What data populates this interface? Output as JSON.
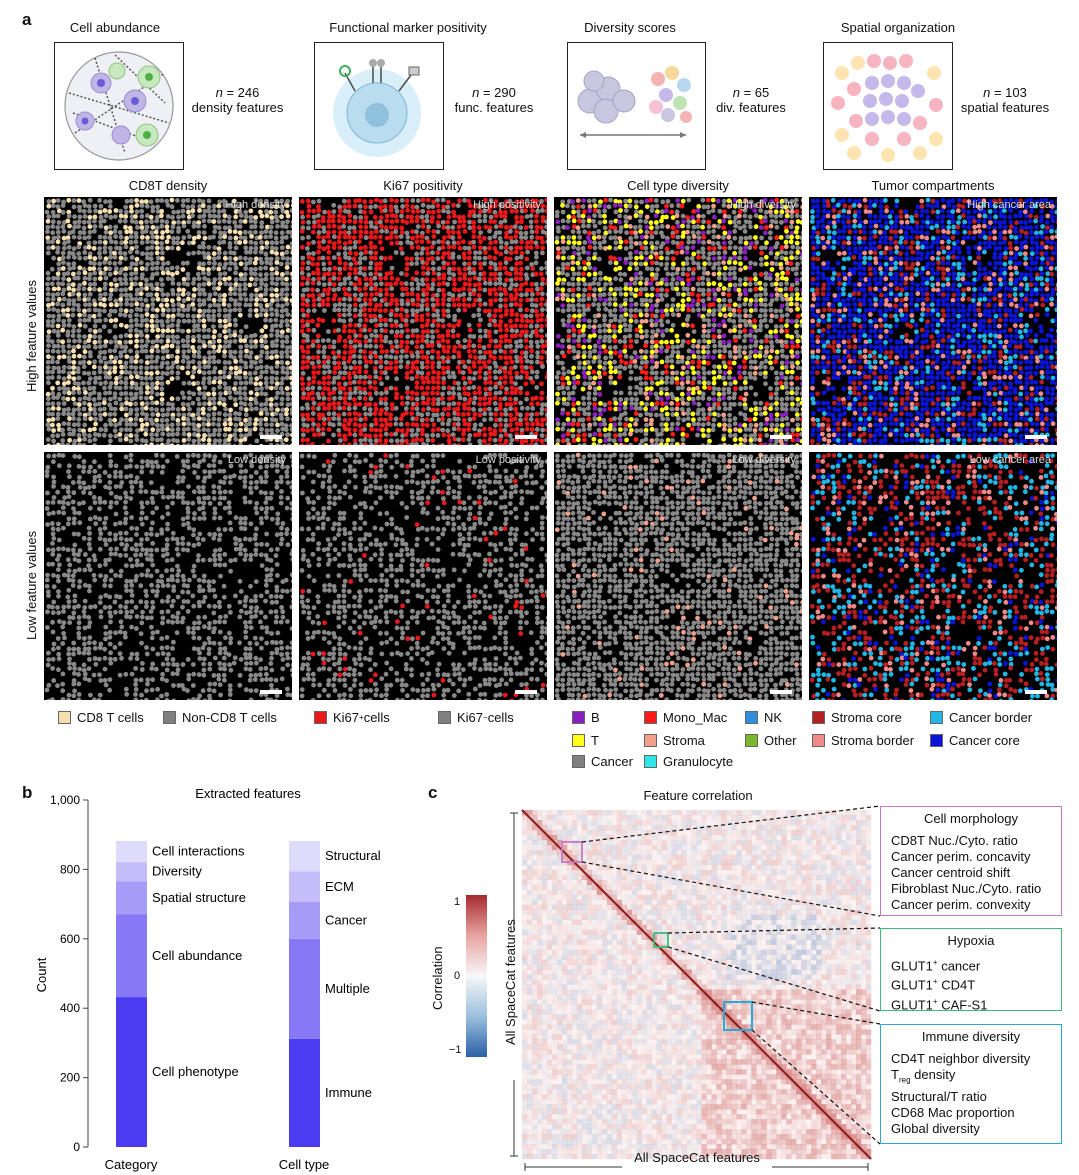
{
  "panel_a": {
    "label": "a",
    "schematics": [
      {
        "title": "Cell abundance",
        "n_prefix": "n",
        "n_value": " = 246",
        "desc": "density features"
      },
      {
        "title": "Functional marker positivity",
        "n_prefix": "n",
        "n_value": " = 290",
        "desc": "func. features"
      },
      {
        "title": "Diversity scores",
        "n_prefix": "n",
        "n_value": " = 65",
        "desc": "div. features"
      },
      {
        "title": "Spatial organization",
        "n_prefix": "n",
        "n_value": " = 103",
        "desc": "spatial features"
      }
    ],
    "column_titles": [
      "CD8T density",
      "Ki67 positivity",
      "Cell type diversity",
      "Tumor compartments"
    ],
    "row_labels": [
      "High feature values",
      "Low feature values"
    ],
    "high_tags": [
      "High density",
      "High positivity",
      "High diversity",
      "High cancer area"
    ],
    "low_tags": [
      "Low density",
      "Low positivity",
      "Low diversity",
      "Low cancer area"
    ],
    "legend": {
      "cd8": [
        {
          "label": "CD8 T cells",
          "color": "#f5dfb0"
        },
        {
          "label": "Non-CD8 T cells",
          "color": "#808080"
        }
      ],
      "ki67": [
        {
          "pre": "Ki67",
          "sup": "+",
          "post": " cells",
          "color": "#e8181b"
        },
        {
          "pre": "Ki67",
          "sup": "−",
          "post": " cells",
          "color": "#808080"
        }
      ],
      "celltype": [
        {
          "label": "B",
          "color": "#8a1fbf"
        },
        {
          "label": "Mono_Mac",
          "color": "#ff1a1a"
        },
        {
          "label": "NK",
          "color": "#2f8fde"
        },
        {
          "label": "T",
          "color": "#ffff1a"
        },
        {
          "label": "Stroma",
          "color": "#f0a08a"
        },
        {
          "label": "Other",
          "color": "#7ab82e"
        },
        {
          "label": "Cancer",
          "color": "#808080"
        },
        {
          "label": "Granulocyte",
          "color": "#2ee6e6"
        }
      ],
      "compartment": [
        {
          "label": "Stroma core",
          "color": "#b51e22"
        },
        {
          "label": "Cancer border",
          "color": "#20b7e6"
        },
        {
          "label": "Stroma border",
          "color": "#f08a8a"
        },
        {
          "label": "Cancer core",
          "color": "#0a14d6"
        }
      ]
    }
  },
  "panel_b": {
    "label": "b",
    "title": "Extracted features",
    "ylabel": "Count",
    "yticks": [
      "0",
      "200",
      "400",
      "600",
      "800",
      "1,000"
    ],
    "xticks": [
      "Category",
      "Cell type"
    ]
  },
  "chart_data": {
    "type": "bar",
    "stacked": true,
    "title": "Extracted features",
    "xlabel": "",
    "ylabel": "Count",
    "ylim": [
      0,
      1000
    ],
    "categories": [
      "Category",
      "Cell type"
    ],
    "bars": [
      {
        "category": "Category",
        "segments": [
          {
            "name": "Cell phenotype",
            "value": 432
          },
          {
            "name": "Cell abundance",
            "value": 238
          },
          {
            "name": "Spatial structure",
            "value": 96
          },
          {
            "name": "Diversity",
            "value": 55
          },
          {
            "name": "Cell interactions",
            "value": 61
          }
        ]
      },
      {
        "category": "Cell type",
        "segments": [
          {
            "name": "Immune",
            "value": 312
          },
          {
            "name": "Multiple",
            "value": 288
          },
          {
            "name": "Cancer",
            "value": 106
          },
          {
            "name": "ECM",
            "value": 88
          },
          {
            "name": "Structural",
            "value": 88
          }
        ]
      }
    ]
  },
  "panel_c": {
    "label": "c",
    "title": "Feature correlation",
    "ylabel": "All SpaceCat features",
    "xlabel": "All SpaceCat features",
    "colorbar": {
      "label": "Correlation",
      "max": "1",
      "mid": "0",
      "min": "−1"
    },
    "boxes": {
      "morph": {
        "title": "Cell morphology",
        "color": "#c47ac4",
        "items": [
          "CD8T Nuc./Cyto. ratio",
          "Cancer perim. concavity",
          "Cancer centroid shift",
          "Fibroblast Nuc./Cyto. ratio",
          "Cancer perim. convexity"
        ]
      },
      "hypoxia": {
        "title": "Hypoxia",
        "color": "#3cbc78",
        "items": [
          {
            "pre": "GLUT1",
            "sup": "+",
            "post": " cancer"
          },
          {
            "pre": "GLUT1",
            "sup": "+",
            "post": " CD4T"
          },
          {
            "pre": "GLUT1",
            "sup": "+",
            "post": " CAF-S1"
          }
        ]
      },
      "immune": {
        "title": "Immune diversity",
        "color": "#2aa9d6",
        "items": [
          "CD4T neighbor diversity",
          "Structural/T ratio",
          "CD68 Mac proportion",
          "Global diversity"
        ],
        "treg_pre": "T",
        "treg_sub": "reg",
        "treg_post": " density"
      }
    }
  }
}
